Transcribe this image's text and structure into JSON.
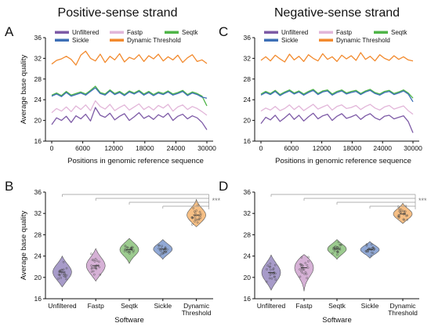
{
  "strands": [
    {
      "title": "Positive-sense strand",
      "line_panel": "A",
      "violin_panel": "B"
    },
    {
      "title": "Negative-sense strand",
      "line_panel": "C",
      "violin_panel": "D"
    }
  ],
  "colors": {
    "Unfiltered": "#7d5aa6",
    "Fastp": "#e2b6d9",
    "Seqtk": "#4fb548",
    "Sickle": "#3d6fb6",
    "Dynamic Threshold": "#f28a2e"
  },
  "violin_fill": {
    "Unfiltered": "#a79bc9",
    "Fastp": "#d6b1d6",
    "Seqtk": "#9ccb8f",
    "Sickle": "#91a9d6",
    "Dynamic Threshold": "#f6bf85"
  },
  "significance": "***",
  "chart_data": [
    {
      "panel": "A",
      "type": "line",
      "title": "Positive-sense strand",
      "xlabel": "Positions in genomic reference sequence",
      "ylabel": "Average base quality",
      "xlim": [
        0,
        30000
      ],
      "ylim": [
        16,
        36
      ],
      "xticks": [
        0,
        6000,
        12000,
        18000,
        24000,
        30000
      ],
      "yticks": [
        16,
        20,
        24,
        28,
        32,
        36
      ],
      "legend_placement": "top",
      "series": [
        {
          "name": "Unfiltered",
          "values": [
            19.2,
            20.5,
            20.0,
            20.8,
            19.6,
            20.9,
            20.3,
            21.2,
            19.9,
            22.5,
            21.0,
            20.6,
            21.4,
            20.1,
            20.8,
            21.3,
            20.0,
            20.7,
            21.5,
            20.4,
            20.9,
            20.2,
            21.1,
            20.6,
            21.4,
            20.0,
            20.8,
            21.2,
            20.3,
            20.9,
            20.5,
            19.6,
            18.2
          ]
        },
        {
          "name": "Fastp",
          "values": [
            21.5,
            22.3,
            21.8,
            22.6,
            21.7,
            22.8,
            22.1,
            23.0,
            21.9,
            23.8,
            22.7,
            22.2,
            23.1,
            21.9,
            22.5,
            23.0,
            22.0,
            22.6,
            23.2,
            22.1,
            22.7,
            22.0,
            22.9,
            22.4,
            23.1,
            21.8,
            22.6,
            23.0,
            22.1,
            22.7,
            22.3,
            21.7,
            21.0
          ]
        },
        {
          "name": "Seqtk",
          "values": [
            24.9,
            25.3,
            24.8,
            25.6,
            24.9,
            25.2,
            25.5,
            25.1,
            25.8,
            26.6,
            25.4,
            25.1,
            25.9,
            25.2,
            25.6,
            25.0,
            25.7,
            25.3,
            25.8,
            25.1,
            25.6,
            25.0,
            25.5,
            25.2,
            25.7,
            25.1,
            25.4,
            25.8,
            25.0,
            25.5,
            25.2,
            24.7,
            22.8
          ]
        },
        {
          "name": "Sickle",
          "values": [
            24.7,
            25.1,
            24.6,
            25.4,
            24.7,
            25.0,
            25.3,
            24.9,
            25.6,
            26.3,
            25.2,
            24.9,
            25.7,
            25.0,
            25.4,
            24.8,
            25.5,
            25.1,
            25.6,
            24.9,
            25.4,
            24.8,
            25.3,
            25.0,
            25.5,
            24.9,
            25.2,
            25.6,
            24.8,
            25.3,
            25.0,
            24.5,
            24.3
          ]
        },
        {
          "name": "Dynamic Threshold",
          "values": [
            30.9,
            31.6,
            31.9,
            32.4,
            31.8,
            30.7,
            32.6,
            33.4,
            32.0,
            31.5,
            32.8,
            31.2,
            32.4,
            31.7,
            32.9,
            31.3,
            32.2,
            31.8,
            32.7,
            31.4,
            32.5,
            31.9,
            32.8,
            31.5,
            32.3,
            31.7,
            32.6,
            31.2,
            32.1,
            32.7,
            31.4,
            31.7,
            31.0
          ]
        }
      ]
    },
    {
      "panel": "C",
      "type": "line",
      "title": "Negative-sense strand",
      "xlabel": "Positions in genomic reference sequence",
      "ylabel": "",
      "xlim": [
        0,
        30000
      ],
      "ylim": [
        16,
        36
      ],
      "xticks": [
        0,
        6000,
        12000,
        18000,
        24000,
        30000
      ],
      "yticks": [
        16,
        20,
        24,
        28,
        32,
        36
      ],
      "legend_placement": "top",
      "series": [
        {
          "name": "Unfiltered",
          "values": [
            19.4,
            20.6,
            20.1,
            21.0,
            19.8,
            20.5,
            21.3,
            20.2,
            21.0,
            19.9,
            20.7,
            21.4,
            20.3,
            20.9,
            21.2,
            20.0,
            20.8,
            21.3,
            20.4,
            20.7,
            21.1,
            20.2,
            20.9,
            21.3,
            20.5,
            20.1,
            20.8,
            21.0,
            20.3,
            20.6,
            20.9,
            19.8,
            17.6
          ]
        },
        {
          "name": "Fastp",
          "values": [
            21.8,
            22.4,
            22.0,
            22.7,
            21.9,
            22.3,
            23.0,
            22.1,
            22.8,
            21.9,
            22.5,
            23.1,
            22.2,
            22.6,
            23.0,
            22.0,
            22.7,
            23.0,
            22.3,
            22.5,
            22.9,
            22.1,
            22.7,
            23.1,
            22.4,
            22.0,
            22.6,
            22.9,
            22.2,
            22.5,
            22.8,
            21.9,
            21.2
          ]
        },
        {
          "name": "Seqtk",
          "values": [
            25.1,
            25.6,
            25.2,
            25.8,
            25.0,
            25.5,
            25.9,
            25.3,
            25.7,
            25.1,
            25.6,
            26.0,
            25.2,
            25.7,
            25.9,
            25.1,
            25.6,
            25.9,
            25.3,
            25.6,
            25.8,
            25.2,
            25.7,
            26.0,
            25.4,
            25.1,
            25.6,
            25.8,
            25.2,
            25.5,
            25.9,
            25.3,
            24.3
          ]
        },
        {
          "name": "Sickle",
          "values": [
            24.9,
            25.4,
            25.0,
            25.6,
            24.8,
            25.3,
            25.7,
            25.1,
            25.5,
            24.9,
            25.4,
            25.8,
            25.0,
            25.5,
            25.7,
            24.9,
            25.4,
            25.7,
            25.1,
            25.4,
            25.6,
            25.0,
            25.5,
            25.8,
            25.2,
            24.9,
            25.4,
            25.6,
            25.0,
            25.3,
            25.7,
            25.1,
            23.6
          ]
        },
        {
          "name": "Dynamic Threshold",
          "values": [
            31.6,
            32.3,
            31.5,
            32.6,
            31.9,
            31.3,
            32.8,
            31.7,
            32.4,
            31.4,
            32.7,
            32.0,
            31.5,
            32.9,
            31.8,
            32.3,
            31.4,
            32.6,
            31.9,
            32.5,
            31.6,
            33.1,
            31.8,
            32.4,
            31.5,
            32.7,
            32.0,
            31.6,
            32.5,
            31.8,
            32.3,
            31.7,
            31.5
          ]
        }
      ]
    },
    {
      "panel": "B",
      "type": "violin",
      "xlabel": "Software",
      "ylabel": "Average base quality",
      "ylim": [
        16,
        36
      ],
      "yticks": [
        16,
        20,
        24,
        28,
        32,
        36
      ],
      "categories": [
        "Unfiltered",
        "Fastp",
        "Seqtk",
        "Sickle",
        "Dynamic Threshold"
      ],
      "medians": [
        21.0,
        22.2,
        25.2,
        25.3,
        31.7
      ],
      "ranges": [
        [
          18.2,
          24.0
        ],
        [
          19.3,
          25.4
        ],
        [
          22.6,
          27.3
        ],
        [
          23.4,
          27.1
        ],
        [
          29.5,
          34.6
        ]
      ],
      "significance": "***"
    },
    {
      "panel": "D",
      "type": "violin",
      "xlabel": "Software",
      "ylabel": "",
      "ylim": [
        16,
        36
      ],
      "yticks": [
        16,
        20,
        24,
        28,
        32,
        36
      ],
      "categories": [
        "Unfiltered",
        "Fastp",
        "Seqtk",
        "Sickle",
        "Dynamic Threshold"
      ],
      "medians": [
        20.9,
        21.8,
        25.3,
        25.2,
        31.9
      ],
      "ranges": [
        [
          17.6,
          24.2
        ],
        [
          17.4,
          24.3
        ],
        [
          23.4,
          27.1
        ],
        [
          23.6,
          26.7
        ],
        [
          30.1,
          33.9
        ]
      ],
      "significance": "***"
    }
  ]
}
